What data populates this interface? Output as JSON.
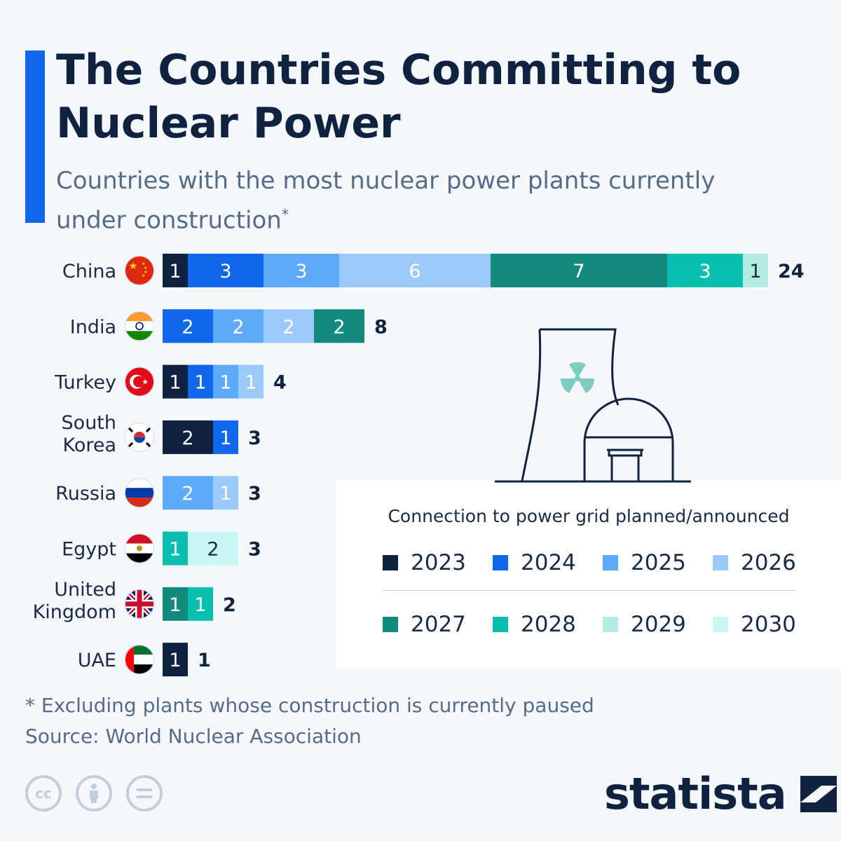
{
  "header": {
    "title": "The Countries Committing to Nuclear Power",
    "subtitle": "Countries with the most nuclear power plants currently under construction",
    "subtitle_mark": "*"
  },
  "legend": {
    "title": "Connection to power grid planned/announced",
    "items": [
      {
        "label": "2023",
        "color": "#0f2340"
      },
      {
        "label": "2024",
        "color": "#1167ea"
      },
      {
        "label": "2025",
        "color": "#5ea9f8"
      },
      {
        "label": "2026",
        "color": "#9cc9f7"
      },
      {
        "label": "2027",
        "color": "#138a7e"
      },
      {
        "label": "2028",
        "color": "#0bbfae"
      },
      {
        "label": "2029",
        "color": "#b6ebe4"
      },
      {
        "label": "2030",
        "color": "#c9f7f4"
      }
    ]
  },
  "chart_data": {
    "type": "bar",
    "stacked": true,
    "orientation": "horizontal",
    "categories": [
      "China",
      "India",
      "Turkey",
      "South Korea",
      "Russia",
      "Egypt",
      "United Kingdom",
      "UAE"
    ],
    "series": [
      {
        "name": "2023",
        "values": [
          1,
          0,
          1,
          2,
          0,
          0,
          0,
          1
        ]
      },
      {
        "name": "2024",
        "values": [
          3,
          2,
          1,
          1,
          0,
          0,
          0,
          0
        ]
      },
      {
        "name": "2025",
        "values": [
          3,
          2,
          1,
          0,
          2,
          0,
          0,
          0
        ]
      },
      {
        "name": "2026",
        "values": [
          6,
          2,
          1,
          0,
          1,
          0,
          0,
          0
        ]
      },
      {
        "name": "2027",
        "values": [
          7,
          2,
          0,
          0,
          0,
          0,
          1,
          0
        ]
      },
      {
        "name": "2028",
        "values": [
          3,
          0,
          0,
          0,
          0,
          1,
          1,
          0
        ]
      },
      {
        "name": "2029",
        "values": [
          1,
          0,
          0,
          0,
          0,
          0,
          0,
          0
        ]
      },
      {
        "name": "2030",
        "values": [
          0,
          0,
          0,
          0,
          0,
          2,
          0,
          0
        ]
      }
    ],
    "totals": [
      24,
      8,
      4,
      3,
      3,
      3,
      2,
      1
    ],
    "xlim": [
      0,
      24
    ],
    "grid": false
  },
  "footer": {
    "footnote": "* Excluding plants whose construction is currently paused",
    "source": "Source: World Nuclear Association",
    "logo": "statista",
    "license_icons": [
      "cc-icon",
      "attribution-icon",
      "no-derivatives-icon"
    ]
  }
}
